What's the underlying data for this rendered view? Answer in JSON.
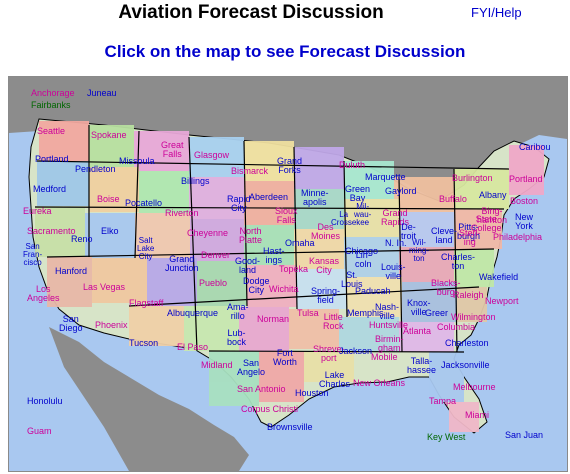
{
  "header": {
    "title": "Aviation Forecast Discussion",
    "help_link": "FYI/Help",
    "instruction": "Click on the map to see Forecast Discussion"
  },
  "map": {
    "colors": {
      "ocean": "#a9c8f0",
      "land_outside": "#8c8c8c",
      "frame": "#8a8a8a",
      "state_border": "#000000",
      "label_blue": "#0000cc",
      "label_magenta": "#cc0099",
      "label_green": "#006600",
      "label_black": "#000000"
    },
    "office_labels": [
      {
        "name": "anchorage",
        "text": "Anchorage",
        "color": "#cc0099"
      },
      {
        "name": "juneau",
        "text": "Juneau",
        "color": "#0000cc"
      },
      {
        "name": "fairbanks",
        "text": "Fairbanks",
        "color": "#006600"
      },
      {
        "name": "seattle",
        "text": "Seattle",
        "color": "#cc0099"
      },
      {
        "name": "spokane",
        "text": "Spokane",
        "color": "#cc0099"
      },
      {
        "name": "great-falls",
        "text": "Great\nFalls",
        "color": "#cc0099"
      },
      {
        "name": "glasgow",
        "text": "Glasgow",
        "color": "#cc0099"
      },
      {
        "name": "grand-forks",
        "text": "Grand\nForks",
        "color": "#0000cc"
      },
      {
        "name": "duluth",
        "text": "Duluth",
        "color": "#cc0099"
      },
      {
        "name": "caribou",
        "text": "Caribou",
        "color": "#0000cc"
      },
      {
        "name": "portland-or",
        "text": "Portland",
        "color": "#0000cc"
      },
      {
        "name": "pendleton",
        "text": "Pendleton",
        "color": "#0000cc"
      },
      {
        "name": "missoula",
        "text": "Missoula",
        "color": "#0000cc"
      },
      {
        "name": "billings",
        "text": "Billings",
        "color": "#0000cc"
      },
      {
        "name": "bismarck",
        "text": "Bismarck",
        "color": "#cc0099"
      },
      {
        "name": "marquette",
        "text": "Marquette",
        "color": "#0000cc"
      },
      {
        "name": "burlington",
        "text": "Burlington",
        "color": "#cc0099"
      },
      {
        "name": "portland-me",
        "text": "Portland",
        "color": "#cc0099"
      },
      {
        "name": "medford",
        "text": "Medford",
        "color": "#0000cc"
      },
      {
        "name": "boise",
        "text": "Boise",
        "color": "#cc0099"
      },
      {
        "name": "pocatello",
        "text": "Pocatello",
        "color": "#0000cc"
      },
      {
        "name": "rapid-city",
        "text": "Rapid\nCity",
        "color": "#0000cc"
      },
      {
        "name": "aberdeen",
        "text": "Aberdeen",
        "color": "#0000cc"
      },
      {
        "name": "minneapolis",
        "text": "Minne-\napolis",
        "color": "#0000cc"
      },
      {
        "name": "green-bay",
        "text": "Green\nBay",
        "color": "#0000cc"
      },
      {
        "name": "gaylord",
        "text": "Gaylord",
        "color": "#0000cc"
      },
      {
        "name": "albany",
        "text": "Albany",
        "color": "#0000cc"
      },
      {
        "name": "boston",
        "text": "Boston",
        "color": "#cc0099"
      },
      {
        "name": "eureka",
        "text": "Eureka",
        "color": "#cc0099"
      },
      {
        "name": "riverton",
        "text": "Riverton",
        "color": "#cc0099"
      },
      {
        "name": "sioux-falls",
        "text": "Sioux\nFalls",
        "color": "#cc0099"
      },
      {
        "name": "milwaukee",
        "text": "Mil-\nwau-\nkee",
        "color": "#0000cc"
      },
      {
        "name": "grand-rapids",
        "text": "Grand\nRapids",
        "color": "#cc0099"
      },
      {
        "name": "buffalo",
        "text": "Buffalo",
        "color": "#cc0099"
      },
      {
        "name": "binghamton",
        "text": "Bing-\nhamton",
        "color": "#cc0099"
      },
      {
        "name": "new-york",
        "text": "New\nYork",
        "color": "#0000cc"
      },
      {
        "name": "sacramento",
        "text": "Sacramento",
        "color": "#cc0099"
      },
      {
        "name": "reno",
        "text": "Reno",
        "color": "#0000cc"
      },
      {
        "name": "elko",
        "text": "Elko",
        "color": "#0000cc"
      },
      {
        "name": "cheyenne",
        "text": "Cheyenne",
        "color": "#cc0099"
      },
      {
        "name": "north-platte",
        "text": "North\nPlatte",
        "color": "#cc0099"
      },
      {
        "name": "omaha",
        "text": "Omaha",
        "color": "#0000cc"
      },
      {
        "name": "des-moines",
        "text": "Des\nMoines",
        "color": "#cc0099"
      },
      {
        "name": "la-crosse",
        "text": "La\nCrosse",
        "color": "#0000cc"
      },
      {
        "name": "detroit",
        "text": "De-\ntroit",
        "color": "#0000cc"
      },
      {
        "name": "cleveland",
        "text": "Cleve-\nland",
        "color": "#0000cc"
      },
      {
        "name": "pittsburgh",
        "text": "Pitts-\nburgh",
        "color": "#0000cc"
      },
      {
        "name": "state-college",
        "text": "State\nCollege",
        "color": "#cc0099"
      },
      {
        "name": "philadelphia",
        "text": "Philadelphia",
        "color": "#cc0099"
      },
      {
        "name": "san-francisco",
        "text": "San\nFran-\ncisco",
        "color": "#0000cc"
      },
      {
        "name": "salt-lake-city",
        "text": "Salt\nLake\nCity",
        "color": "#0000cc"
      },
      {
        "name": "grand-junction",
        "text": "Grand\nJunction",
        "color": "#0000cc"
      },
      {
        "name": "denver",
        "text": "Denver",
        "color": "#cc0099"
      },
      {
        "name": "goodland",
        "text": "Good-\nland",
        "color": "#0000cc"
      },
      {
        "name": "hastings",
        "text": "Hast-\nings",
        "color": "#0000cc"
      },
      {
        "name": "topeka",
        "text": "Topeka",
        "color": "#cc0099"
      },
      {
        "name": "kansas-city",
        "text": "Kansas\nCity",
        "color": "#cc0099"
      },
      {
        "name": "chicago",
        "text": "Chicago",
        "color": "#0000cc"
      },
      {
        "name": "lincoln",
        "text": "Lin-\ncoln",
        "color": "#0000cc"
      },
      {
        "name": "northern-indiana",
        "text": "N. In.",
        "color": "#0000cc"
      },
      {
        "name": "wilmington-oh",
        "text": "Wil-\nming-\nton",
        "color": "#0000cc"
      },
      {
        "name": "charleston-wv",
        "text": "Charles-\nton",
        "color": "#0000cc"
      },
      {
        "name": "sterling",
        "text": "Sterl-\ning",
        "color": "#cc0099"
      },
      {
        "name": "hanford",
        "text": "Hanford",
        "color": "#0000cc"
      },
      {
        "name": "las-vegas",
        "text": "Las Vegas",
        "color": "#cc0099"
      },
      {
        "name": "pueblo",
        "text": "Pueblo",
        "color": "#cc0099"
      },
      {
        "name": "dodge-city",
        "text": "Dodge\nCity",
        "color": "#0000cc"
      },
      {
        "name": "wichita",
        "text": "Wichita",
        "color": "#cc0099"
      },
      {
        "name": "springfield",
        "text": "Spring-\nfield",
        "color": "#0000cc"
      },
      {
        "name": "st-louis",
        "text": "St.\nLouis",
        "color": "#0000cc"
      },
      {
        "name": "louisville",
        "text": "Louis-\nville",
        "color": "#0000cc"
      },
      {
        "name": "paducah",
        "text": "Paducah",
        "color": "#0000cc"
      },
      {
        "name": "wakefield",
        "text": "Wakefield",
        "color": "#0000cc"
      },
      {
        "name": "los-angeles",
        "text": "Los\nAngeles",
        "color": "#cc0099"
      },
      {
        "name": "flagstaff",
        "text": "Flagstaff",
        "color": "#cc0099"
      },
      {
        "name": "amarillo",
        "text": "Ama-\nrillo",
        "color": "#0000cc"
      },
      {
        "name": "tulsa",
        "text": "Tulsa",
        "color": "#cc0099"
      },
      {
        "name": "nashville",
        "text": "Nash-\nville",
        "color": "#0000cc"
      },
      {
        "name": "knoxville",
        "text": "Knox-\nville",
        "color": "#0000cc"
      },
      {
        "name": "blacksburg",
        "text": "Blacks-\nburg",
        "color": "#cc0099"
      },
      {
        "name": "raleigh",
        "text": "Raleigh",
        "color": "#cc0099"
      },
      {
        "name": "newport",
        "text": "Newport",
        "color": "#cc0099"
      },
      {
        "name": "san-diego",
        "text": "San\nDiego",
        "color": "#0000cc"
      },
      {
        "name": "phoenix",
        "text": "Phoenix",
        "color": "#cc0099"
      },
      {
        "name": "albuquerque",
        "text": "Albuquerque",
        "color": "#0000cc"
      },
      {
        "name": "norman",
        "text": "Norman",
        "color": "#cc0099"
      },
      {
        "name": "little-rock",
        "text": "Little\nRock",
        "color": "#cc0099"
      },
      {
        "name": "memphis",
        "text": "Memphis",
        "color": "#0000cc"
      },
      {
        "name": "huntsville",
        "text": "Huntsville",
        "color": "#cc0099"
      },
      {
        "name": "greer",
        "text": "Greer",
        "color": "#0000cc"
      },
      {
        "name": "wilmington-nc",
        "text": "Wilmington",
        "color": "#cc0099"
      },
      {
        "name": "lubbock",
        "text": "Lub-\nbock",
        "color": "#0000cc"
      },
      {
        "name": "columbia",
        "text": "Columbia",
        "color": "#cc0099"
      },
      {
        "name": "atlanta",
        "text": "Atlanta",
        "color": "#cc0099"
      },
      {
        "name": "tucson",
        "text": "Tucson",
        "color": "#0000cc"
      },
      {
        "name": "el-paso",
        "text": "El Paso",
        "color": "#cc0099"
      },
      {
        "name": "shreveport",
        "text": "Shreve-\nport",
        "color": "#cc0099"
      },
      {
        "name": "jackson",
        "text": "Jackson",
        "color": "#0000cc"
      },
      {
        "name": "birmingham",
        "text": "Birmin-\ngham",
        "color": "#cc0099"
      },
      {
        "name": "charleston-sc",
        "text": "Charleston",
        "color": "#0000cc"
      },
      {
        "name": "midland",
        "text": "Midland",
        "color": "#cc0099"
      },
      {
        "name": "fort-worth",
        "text": "Fort\nWorth",
        "color": "#0000cc"
      },
      {
        "name": "mobile",
        "text": "Mobile",
        "color": "#cc0099"
      },
      {
        "name": "tallahassee",
        "text": "Talla-\nhassee",
        "color": "#0000cc"
      },
      {
        "name": "jacksonville",
        "text": "Jacksonville",
        "color": "#0000cc"
      },
      {
        "name": "san-angelo",
        "text": "San\nAngelo",
        "color": "#0000cc"
      },
      {
        "name": "lake-charles",
        "text": "Lake\nCharles",
        "color": "#0000cc"
      },
      {
        "name": "new-orleans",
        "text": "New Orleans",
        "color": "#cc0099"
      },
      {
        "name": "san-antonio",
        "text": "San Antonio",
        "color": "#cc0099"
      },
      {
        "name": "houston",
        "text": "Houston",
        "color": "#0000cc"
      },
      {
        "name": "melbourne",
        "text": "Melbourne",
        "color": "#cc0099"
      },
      {
        "name": "tampa",
        "text": "Tampa",
        "color": "#cc0099"
      },
      {
        "name": "corpus-christi",
        "text": "Corpus Christi",
        "color": "#cc0099"
      },
      {
        "name": "miami",
        "text": "Miami",
        "color": "#cc0099"
      },
      {
        "name": "brownsville",
        "text": "Brownsville",
        "color": "#0000cc"
      },
      {
        "name": "honolulu",
        "text": "Honolulu",
        "color": "#0000cc"
      },
      {
        "name": "guam",
        "text": "Guam",
        "color": "#cc0099"
      },
      {
        "name": "key-west",
        "text": "Key West",
        "color": "#006600"
      },
      {
        "name": "san-juan",
        "text": "San Juan",
        "color": "#0000cc"
      }
    ]
  }
}
